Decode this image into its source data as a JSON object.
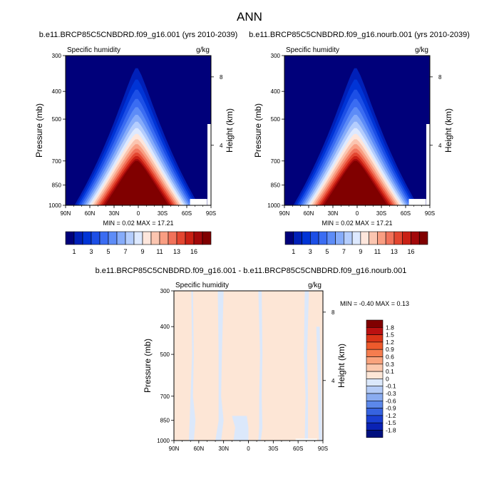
{
  "figure": {
    "title": "ANN"
  },
  "chart_data": [
    {
      "type": "heatmap",
      "title": "b.e11.BRCP85C5CNBDRD.f09_g16.001 (yrs 2010-2039)",
      "subtitle_left": "Specific humidity",
      "subtitle_right": "g/kg",
      "xlabel": "",
      "ylabel": "Pressure (mb)",
      "ylabel_right": "Height (km)",
      "x_ticks": [
        "90N",
        "60N",
        "30N",
        "0",
        "30S",
        "60S",
        "90S"
      ],
      "y_ticks": [
        "300",
        "400",
        "500",
        "700",
        "850",
        "1000"
      ],
      "y_ticks_right": [
        "8",
        "4"
      ],
      "min_max": "MIN =   0.02  MAX =  17.21",
      "min": 0.02,
      "max": 17.21,
      "colorbar_labels": [
        "1",
        "3",
        "5",
        "7",
        "9",
        "11",
        "13",
        "16"
      ],
      "colorbar_colors": [
        "#00007a",
        "#0020b8",
        "#0034d6",
        "#1c4fe6",
        "#3a6cf2",
        "#5d8cf7",
        "#86acfa",
        "#b4cdfd",
        "#dde9ff",
        "#fde6dc",
        "#fbc5b0",
        "#f99e82",
        "#f1725a",
        "#e34630",
        "#c92014",
        "#a2080a",
        "#800000"
      ]
    },
    {
      "type": "heatmap",
      "title": "b.e11.BRCP85C5CNBDRD.f09_g16.nourb.001 (yrs 2010-2039)",
      "subtitle_left": "Specific humidity",
      "subtitle_right": "g/kg",
      "xlabel": "",
      "ylabel": "Pressure (mb)",
      "ylabel_right": "Height (km)",
      "x_ticks": [
        "90N",
        "60N",
        "30N",
        "0",
        "30S",
        "60S",
        "90S"
      ],
      "y_ticks": [
        "300",
        "400",
        "500",
        "700",
        "850",
        "1000"
      ],
      "y_ticks_right": [
        "8",
        "4"
      ],
      "min_max": "MIN =   0.02  MAX =  17.21",
      "min": 0.02,
      "max": 17.21,
      "colorbar_labels": [
        "1",
        "3",
        "5",
        "7",
        "9",
        "11",
        "13",
        "16"
      ],
      "colorbar_colors": [
        "#00007a",
        "#0020b8",
        "#0034d6",
        "#1c4fe6",
        "#3a6cf2",
        "#5d8cf7",
        "#86acfa",
        "#b4cdfd",
        "#dde9ff",
        "#fde6dc",
        "#fbc5b0",
        "#f99e82",
        "#f1725a",
        "#e34630",
        "#c92014",
        "#a2080a",
        "#800000"
      ]
    },
    {
      "type": "heatmap",
      "title": "b.e11.BRCP85C5CNBDRD.f09_g16.001 - b.e11.BRCP85C5CNBDRD.f09_g16.nourb.001",
      "subtitle_left": "Specific humidity",
      "subtitle_right": "g/kg",
      "xlabel": "",
      "ylabel": "Pressure (mb)",
      "ylabel_right": "Height (km)",
      "x_ticks": [
        "90N",
        "60N",
        "30N",
        "0",
        "30S",
        "60S",
        "90S"
      ],
      "y_ticks": [
        "300",
        "400",
        "500",
        "700",
        "850",
        "1000"
      ],
      "y_ticks_right": [
        "8",
        "4"
      ],
      "min_max": "MIN =  -0.40  MAX =   0.13",
      "min": -0.4,
      "max": 0.13,
      "colorbar_labels": [
        "1.8",
        "1.5",
        "1.2",
        "0.9",
        "0.6",
        "0.3",
        "0.1",
        "0",
        "-0.1",
        "-0.3",
        "-0.6",
        "-0.9",
        "-1.2",
        "-1.5",
        "-1.8"
      ],
      "colorbar_colors": [
        "#800000",
        "#bb1111",
        "#db3518",
        "#ee5a2c",
        "#f57d4f",
        "#f9a37d",
        "#fbc8ad",
        "#fde6d6",
        "#dbe8fb",
        "#b4cbf6",
        "#8aacf0",
        "#5c88ea",
        "#3663e0",
        "#1a3fd2",
        "#0a22b4",
        "#00107f"
      ]
    }
  ]
}
